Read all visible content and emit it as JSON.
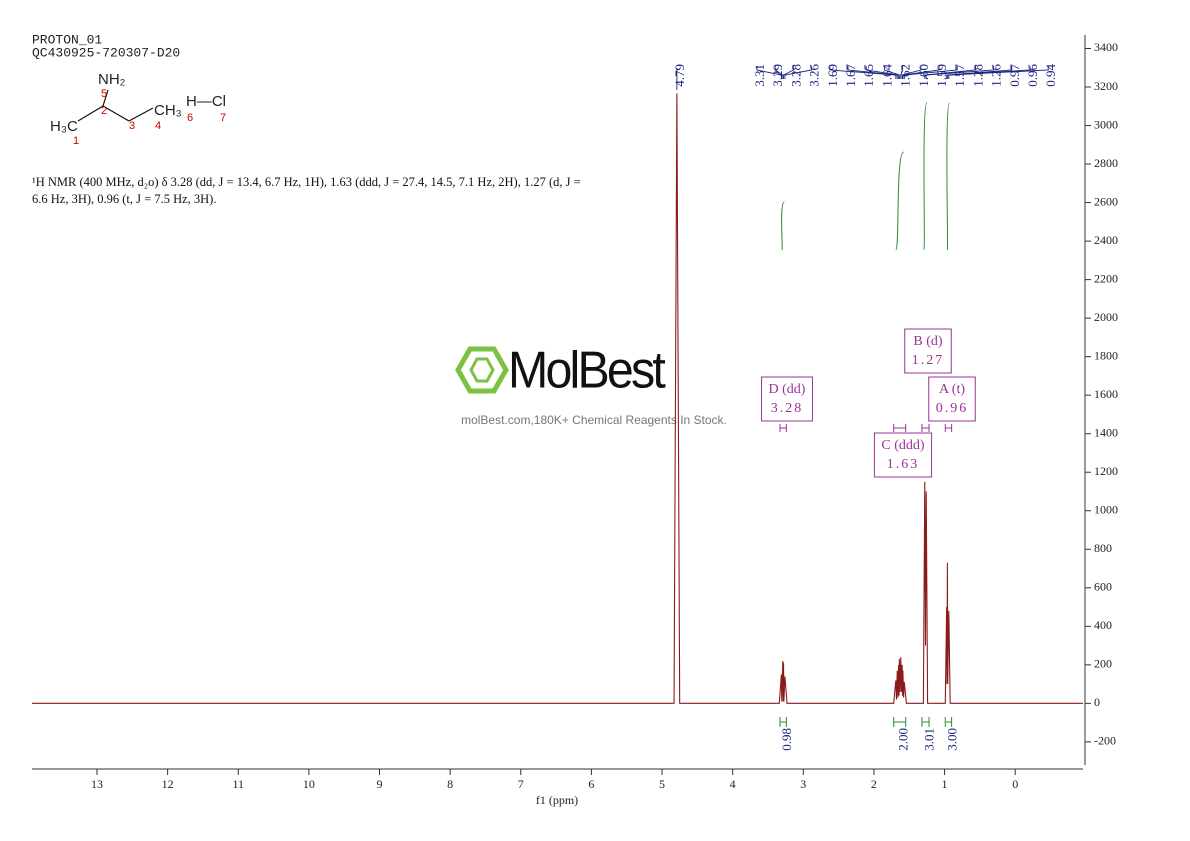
{
  "header": {
    "lines": [
      "PROTON_01",
      "QC430925-720307-D20"
    ]
  },
  "molecule": {
    "groups": [
      "NH₂",
      "H₃C",
      "CH₃",
      "H—Cl"
    ],
    "numbers": [
      1,
      2,
      3,
      4,
      5,
      6,
      7
    ]
  },
  "description": "¹H NMR (400 MHz, d₂o) δ 3.28 (dd, J = 13.4, 6.7 Hz, 1H), 1.63 (ddd, J = 27.4, 14.5, 7.1 Hz, 2H), 1.27 (d, J = 6.6 Hz, 3H), 0.96 (t, J = 7.5 Hz, 3H).",
  "watermark": {
    "brand": "MolBest",
    "tagline": "molBest.com,180K+ Chemical Reagents In Stock."
  },
  "chart_data": {
    "type": "nmr",
    "x_label": "f1 (ppm)",
    "color": "#8b1a1a",
    "x": [
      13.92,
      4.83,
      4.79,
      4.75,
      3.34,
      3.31,
      3.305,
      3.29,
      3.285,
      3.28,
      3.275,
      3.26,
      3.23,
      1.72,
      1.69,
      1.68,
      1.67,
      1.66,
      1.65,
      1.645,
      1.64,
      1.63,
      1.62,
      1.61,
      1.6,
      1.595,
      1.59,
      1.58,
      1.57,
      1.54,
      1.3,
      1.28,
      1.27,
      1.26,
      1.24,
      0.99,
      0.97,
      0.965,
      0.96,
      0.955,
      0.94,
      0.92,
      -0.96
    ],
    "values": [
      0,
      0,
      3167,
      0,
      0,
      150,
      10,
      220,
      10,
      210,
      10,
      140,
      0,
      0,
      120,
      20,
      170,
      30,
      200,
      40,
      230,
      60,
      240,
      60,
      200,
      40,
      170,
      30,
      110,
      0,
      0,
      1150,
      300,
      1100,
      0,
      0,
      500,
      100,
      730,
      100,
      480,
      0,
      0
    ],
    "xlim": [
      13.92,
      -0.96
    ],
    "xticks": [
      13,
      12,
      11,
      10,
      9,
      8,
      7,
      6,
      5,
      4,
      3,
      2,
      1,
      0
    ],
    "ylim": [
      -320,
      3470
    ],
    "yticks": [
      -200,
      0,
      200,
      400,
      600,
      800,
      1000,
      1200,
      1400,
      1600,
      1800,
      2000,
      2200,
      2400,
      2600,
      2800,
      3000,
      3200,
      3400
    ],
    "peak_labels": [
      4.79,
      3.31,
      3.29,
      3.28,
      3.26,
      1.69,
      1.67,
      1.65,
      1.64,
      1.62,
      {
        "value": 1.6,
        "label": "1.60"
      },
      1.59,
      1.57,
      1.28,
      1.26,
      0.97,
      0.96,
      0.94
    ],
    "integrals": [
      {
        "range": [
          3.33,
          3.24
        ],
        "value": 0.98
      },
      {
        "range": [
          1.72,
          1.55
        ],
        "value": {
          "value": 2,
          "label": "2.00"
        }
      },
      {
        "range": [
          1.32,
          1.22
        ],
        "value": 3.01
      },
      {
        "range": [
          0.99,
          0.9
        ],
        "value": {
          "value": 3,
          "label": "3.00"
        }
      }
    ],
    "multiplets": [
      {
        "name": "D (dd)",
        "shift": 3.28,
        "range": [
          3.33,
          3.24
        ]
      },
      {
        "name": "C (ddd)",
        "shift": 1.63,
        "range": [
          1.72,
          1.55
        ]
      },
      {
        "name": "B (d)",
        "shift": 1.27,
        "range": [
          1.32,
          1.22
        ]
      },
      {
        "name": "A (t)",
        "shift": 0.96,
        "range": [
          0.99,
          0.9
        ]
      }
    ]
  }
}
